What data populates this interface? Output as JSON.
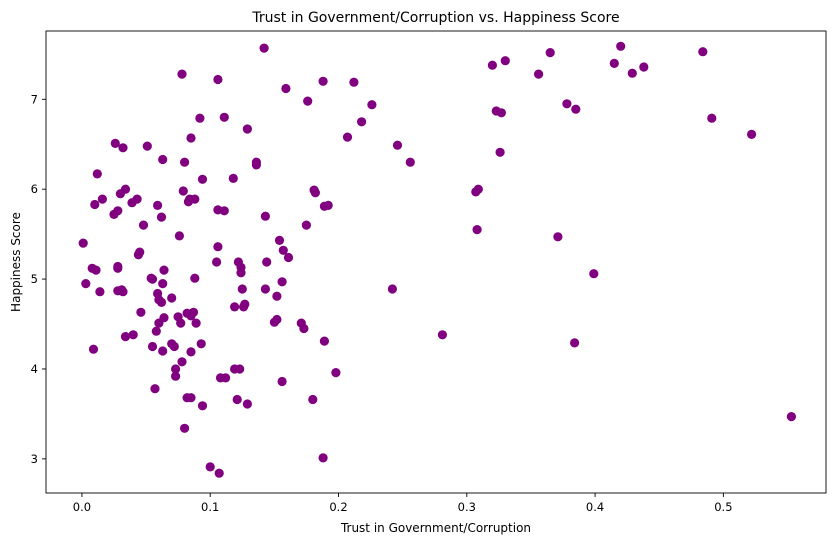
{
  "chart_data": {
    "type": "scatter",
    "title": "Trust in Government/Corruption vs. Happiness Score",
    "xlabel": "Trust in Government/Corruption",
    "ylabel": "Happiness Score",
    "xlim": [
      -0.028,
      0.58
    ],
    "ylim": [
      2.62,
      7.76
    ],
    "xticks": [
      0.0,
      0.1,
      0.2,
      0.3,
      0.4,
      0.5
    ],
    "xtick_labels": [
      "0.0",
      "0.1",
      "0.2",
      "0.3",
      "0.4",
      "0.5"
    ],
    "yticks": [
      3,
      4,
      5,
      6,
      7
    ],
    "ytick_labels": [
      "3",
      "4",
      "5",
      "6",
      "7"
    ],
    "grid": false,
    "marker_color": "#800080",
    "series": [
      {
        "x": [
          0.142,
          0.42,
          0.484,
          0.365,
          0.33,
          0.32,
          0.415,
          0.438,
          0.429,
          0.356,
          0.078,
          0.106,
          0.188,
          0.159,
          0.212,
          0.176,
          0.226,
          0.378,
          0.385,
          0.491,
          0.323,
          0.327,
          0.218,
          0.111,
          0.092,
          0.129,
          0.522,
          0.026,
          0.032,
          0.051,
          0.207,
          0.085,
          0.246,
          0.326,
          0.063,
          0.136,
          0.08,
          0.136,
          0.256,
          0.118,
          0.094,
          0.012,
          0.309,
          0.034,
          0.016,
          0.181,
          0.043,
          0.079,
          0.039,
          0.03,
          0.182,
          0.084,
          0.059,
          0.088,
          0.01,
          0.028,
          0.083,
          0.192,
          0.189,
          0.111,
          0.025,
          0.106,
          0.062,
          0.307,
          0.143,
          0.048,
          0.175,
          0.076,
          0.001,
          0.308,
          0.371,
          0.045,
          0.044,
          0.106,
          0.154,
          0.157,
          0.161,
          0.122,
          0.105,
          0.144,
          0.124,
          0.008,
          0.011,
          0.028,
          0.064,
          0.124,
          0.028,
          0.088,
          0.055,
          0.054,
          0.242,
          0.003,
          0.028,
          0.063,
          0.031,
          0.014,
          0.125,
          0.032,
          0.059,
          0.143,
          0.152,
          0.06,
          0.062,
          0.119,
          0.07,
          0.085,
          0.156,
          0.152,
          0.171,
          0.046,
          0.077,
          0.075,
          0.082,
          0.127,
          0.089,
          0.126,
          0.064,
          0.06,
          0.173,
          0.399,
          0.281,
          0.093,
          0.087,
          0.072,
          0.15,
          0.058,
          0.085,
          0.07,
          0.189,
          0.384,
          0.009,
          0.063,
          0.034,
          0.073,
          0.119,
          0.055,
          0.123,
          0.073,
          0.198,
          0.078,
          0.057,
          0.156,
          0.121,
          0.108,
          0.112,
          0.082,
          0.094,
          0.085,
          0.129,
          0.08,
          0.18,
          0.553,
          0.188,
          0.1,
          0.107,
          0.04
        ],
        "y": [
          7.57,
          7.59,
          7.53,
          7.52,
          7.43,
          7.38,
          7.4,
          7.36,
          7.29,
          7.28,
          7.28,
          7.22,
          7.2,
          7.12,
          7.19,
          6.98,
          6.94,
          6.95,
          6.89,
          6.79,
          6.87,
          6.85,
          6.75,
          6.8,
          6.79,
          6.67,
          6.61,
          6.51,
          6.46,
          6.48,
          6.58,
          6.57,
          6.49,
          6.41,
          6.33,
          6.3,
          6.3,
          6.27,
          6.3,
          6.12,
          6.11,
          6.17,
          6.0,
          6.0,
          5.89,
          5.99,
          5.89,
          5.98,
          5.85,
          5.95,
          5.96,
          5.89,
          5.82,
          5.89,
          5.83,
          5.76,
          5.86,
          5.82,
          5.81,
          5.76,
          5.72,
          5.77,
          5.69,
          5.97,
          5.7,
          5.6,
          5.6,
          5.48,
          5.4,
          5.55,
          5.47,
          5.3,
          5.27,
          5.36,
          5.43,
          5.32,
          5.24,
          5.19,
          5.19,
          5.19,
          5.13,
          5.12,
          5.1,
          5.12,
          5.1,
          5.07,
          5.14,
          5.01,
          5.0,
          5.01,
          4.89,
          4.95,
          4.87,
          4.95,
          4.88,
          4.86,
          4.89,
          4.86,
          4.84,
          4.89,
          4.81,
          4.77,
          4.74,
          4.69,
          4.79,
          4.59,
          4.97,
          4.55,
          4.51,
          4.63,
          4.51,
          4.58,
          4.62,
          4.72,
          4.51,
          4.69,
          4.57,
          4.51,
          4.45,
          5.06,
          4.38,
          4.28,
          4.63,
          4.25,
          4.52,
          4.42,
          4.19,
          4.28,
          4.31,
          4.29,
          4.22,
          4.2,
          4.36,
          4.0,
          4.0,
          4.25,
          4.0,
          3.92,
          3.96,
          4.08,
          3.78,
          3.86,
          3.66,
          3.9,
          3.9,
          3.68,
          3.59,
          3.68,
          3.61,
          3.34,
          3.66,
          3.47,
          3.01,
          2.91,
          2.84,
          4.38
        ]
      }
    ]
  }
}
